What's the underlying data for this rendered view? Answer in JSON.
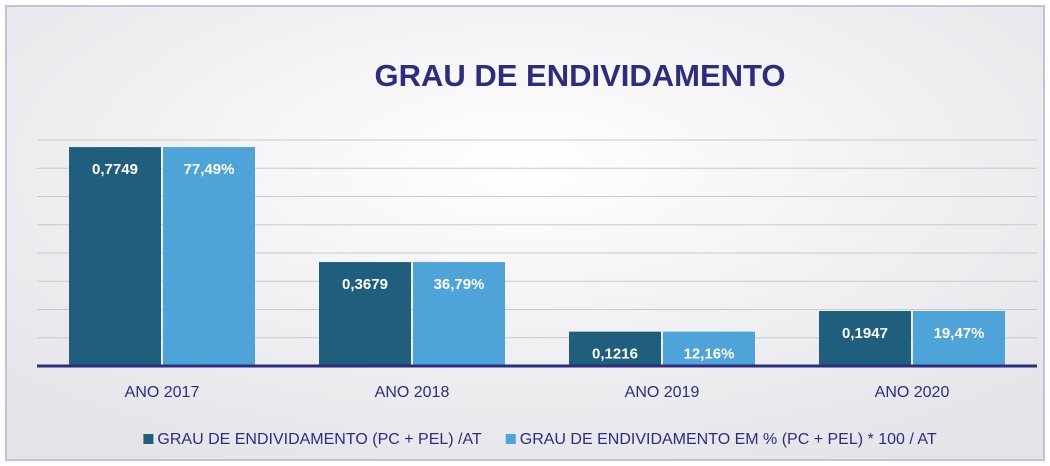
{
  "chart_data": {
    "type": "bar",
    "title": "GRAU DE ENDIVIDAMENTO",
    "categories": [
      "ANO 2017",
      "ANO 2018",
      "ANO 2019",
      "ANO 2020"
    ],
    "series": [
      {
        "name": "GRAU DE ENDIVIDAMENTO (PC + PEL) /AT",
        "color": "#1f5e7d",
        "values": [
          0.7749,
          0.3679,
          0.1216,
          0.1947
        ],
        "value_labels": [
          "0,7749",
          "0,3679",
          "0,1216",
          "0,1947"
        ]
      },
      {
        "name": "GRAU DE ENDIVIDAMENTO EM % (PC + PEL) * 100 / AT",
        "color": "#4ea3d8",
        "axis": "y2",
        "values": [
          77.49,
          36.79,
          12.16,
          19.47
        ],
        "value_labels": [
          "77,49%",
          "36,79%",
          "12,16%",
          "19,47%"
        ]
      }
    ],
    "ylim": [
      0,
      0.8
    ],
    "yticks": [
      0,
      0.1,
      0.2,
      0.3,
      0.4,
      0.5,
      0.6,
      0.7,
      0.8
    ],
    "y2lim": [
      0,
      80
    ],
    "grid": true,
    "legend": "bottom"
  }
}
